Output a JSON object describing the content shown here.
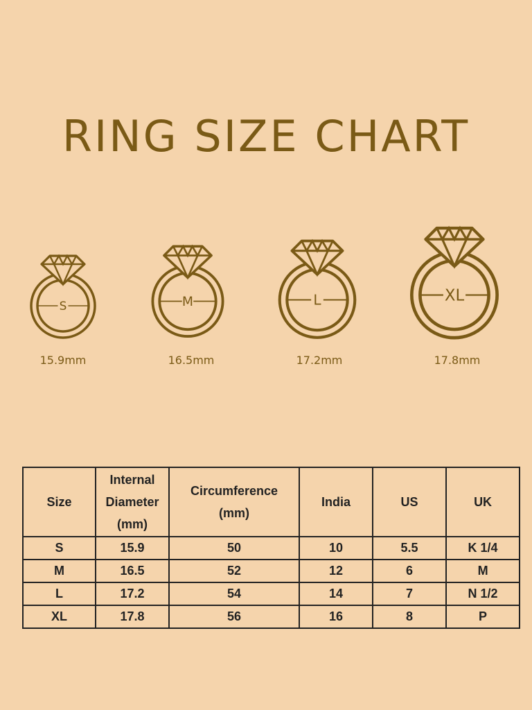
{
  "title": "RING SIZE CHART",
  "colors": {
    "background": "#F5D4AC",
    "gold": "#7A5A16",
    "table_text": "#222222"
  },
  "rings": [
    {
      "label": "S",
      "diameter": "15.9mm",
      "icon": "diamond-ring-icon"
    },
    {
      "label": "M",
      "diameter": "16.5mm",
      "icon": "diamond-ring-icon"
    },
    {
      "label": "L",
      "diameter": "17.2mm",
      "icon": "diamond-ring-icon"
    },
    {
      "label": "XL",
      "diameter": "17.8mm",
      "icon": "diamond-ring-icon"
    }
  ],
  "table": {
    "headers": [
      "Size",
      "Internal Diameter (mm)",
      "Circumference (mm)",
      "India",
      "US",
      "UK"
    ],
    "rows": [
      [
        "S",
        "15.9",
        "50",
        "10",
        "5.5",
        "K 1/4"
      ],
      [
        "M",
        "16.5",
        "52",
        "12",
        "6",
        "M"
      ],
      [
        "L",
        "17.2",
        "54",
        "14",
        "7",
        "N 1/2"
      ],
      [
        "XL",
        "17.8",
        "56",
        "16",
        "8",
        "P"
      ]
    ]
  }
}
